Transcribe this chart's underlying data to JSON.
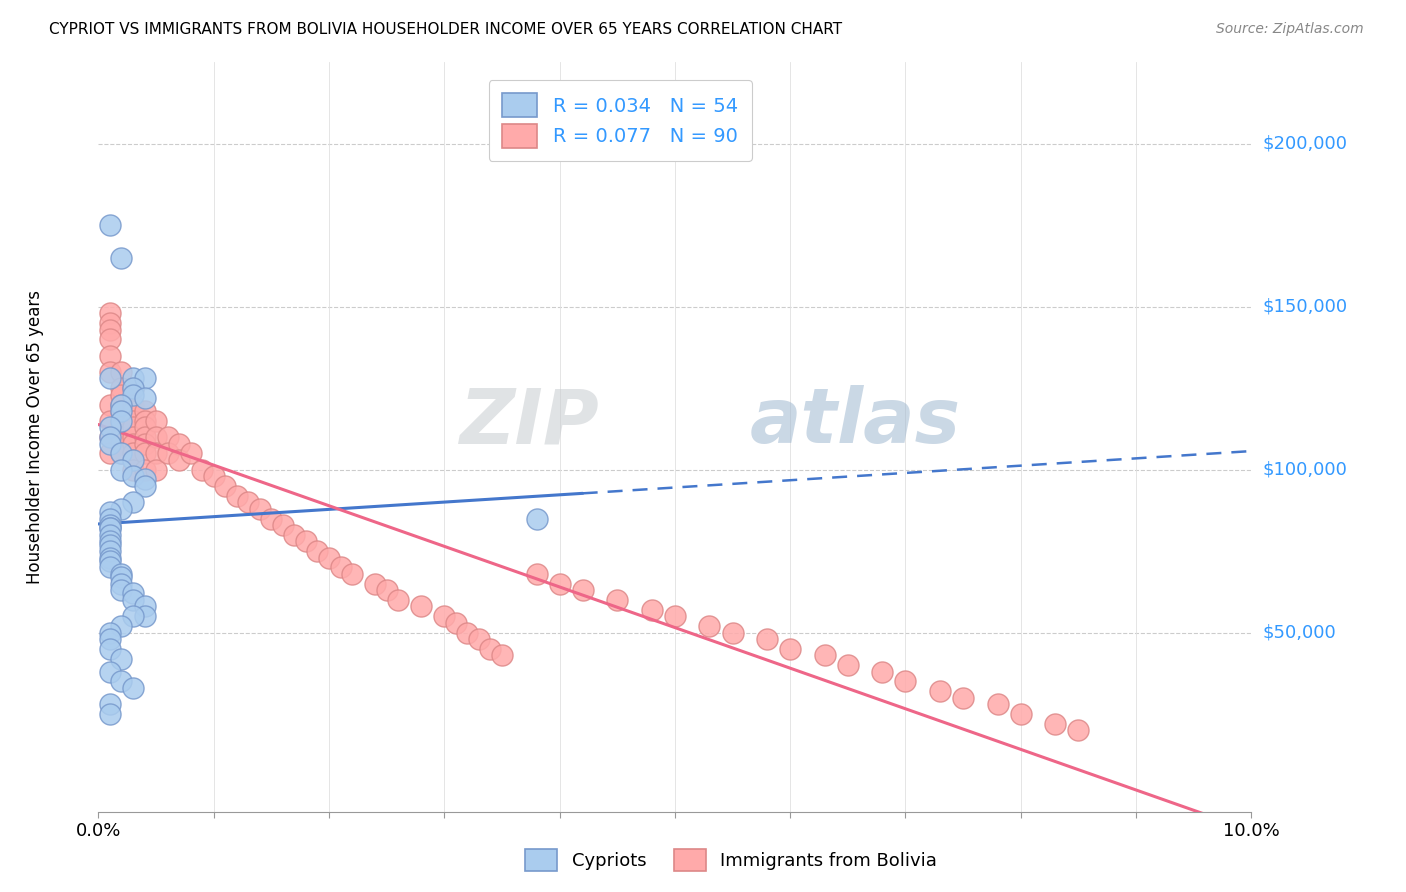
{
  "title": "CYPRIOT VS IMMIGRANTS FROM BOLIVIA HOUSEHOLDER INCOME OVER 65 YEARS CORRELATION CHART",
  "source": "Source: ZipAtlas.com",
  "ylabel": "Householder Income Over 65 years",
  "x_min": 0.0,
  "x_max": 0.1,
  "y_min": -5000,
  "y_max": 225000,
  "legend1_label": "R = 0.034   N = 54",
  "legend2_label": "R = 0.077   N = 90",
  "legend_bottom1": "Cypriots",
  "legend_bottom2": "Immigrants from Bolivia",
  "blue_face": "#aaccee",
  "blue_edge": "#7799cc",
  "pink_face": "#ffaaaa",
  "pink_edge": "#dd8888",
  "trend_blue": "#4477cc",
  "trend_pink": "#ee6688",
  "watermark_gray": "#c8ccd0",
  "watermark_blue": "#a0b8d0",
  "blue_r": 0.034,
  "blue_n": 54,
  "pink_r": 0.077,
  "pink_n": 90,
  "blue_x": [
    0.001,
    0.002,
    0.001,
    0.003,
    0.004,
    0.003,
    0.003,
    0.004,
    0.002,
    0.002,
    0.002,
    0.001,
    0.001,
    0.001,
    0.002,
    0.003,
    0.002,
    0.003,
    0.004,
    0.004,
    0.003,
    0.002,
    0.001,
    0.001,
    0.001,
    0.001,
    0.001,
    0.001,
    0.001,
    0.001,
    0.001,
    0.001,
    0.001,
    0.001,
    0.002,
    0.002,
    0.002,
    0.002,
    0.003,
    0.003,
    0.004,
    0.038,
    0.004,
    0.003,
    0.002,
    0.001,
    0.001,
    0.001,
    0.002,
    0.001,
    0.002,
    0.003,
    0.001,
    0.001
  ],
  "blue_y": [
    175000,
    165000,
    128000,
    128000,
    128000,
    125000,
    123000,
    122000,
    120000,
    118000,
    115000,
    113000,
    110000,
    108000,
    105000,
    103000,
    100000,
    98000,
    97000,
    95000,
    90000,
    88000,
    87000,
    85000,
    83000,
    82000,
    82000,
    80000,
    78000,
    77000,
    75000,
    73000,
    72000,
    70000,
    68000,
    67000,
    65000,
    63000,
    62000,
    60000,
    58000,
    85000,
    55000,
    55000,
    52000,
    50000,
    48000,
    45000,
    42000,
    38000,
    35000,
    33000,
    28000,
    25000
  ],
  "pink_x": [
    0.001,
    0.001,
    0.001,
    0.001,
    0.001,
    0.001,
    0.001,
    0.001,
    0.001,
    0.001,
    0.002,
    0.002,
    0.002,
    0.002,
    0.002,
    0.002,
    0.002,
    0.002,
    0.002,
    0.002,
    0.003,
    0.003,
    0.003,
    0.003,
    0.003,
    0.003,
    0.003,
    0.003,
    0.003,
    0.003,
    0.004,
    0.004,
    0.004,
    0.004,
    0.004,
    0.004,
    0.004,
    0.005,
    0.005,
    0.005,
    0.005,
    0.006,
    0.006,
    0.007,
    0.007,
    0.008,
    0.009,
    0.01,
    0.011,
    0.012,
    0.013,
    0.014,
    0.015,
    0.016,
    0.017,
    0.018,
    0.019,
    0.02,
    0.021,
    0.022,
    0.024,
    0.025,
    0.026,
    0.028,
    0.03,
    0.031,
    0.032,
    0.033,
    0.034,
    0.035,
    0.038,
    0.04,
    0.042,
    0.045,
    0.048,
    0.05,
    0.053,
    0.055,
    0.058,
    0.06,
    0.063,
    0.065,
    0.068,
    0.07,
    0.073,
    0.075,
    0.078,
    0.08,
    0.083,
    0.085
  ],
  "pink_y": [
    148000,
    145000,
    143000,
    140000,
    135000,
    130000,
    120000,
    115000,
    110000,
    105000,
    130000,
    125000,
    123000,
    120000,
    118000,
    115000,
    113000,
    110000,
    108000,
    105000,
    125000,
    120000,
    118000,
    115000,
    113000,
    110000,
    108000,
    105000,
    103000,
    100000,
    118000,
    115000,
    113000,
    110000,
    108000,
    105000,
    100000,
    115000,
    110000,
    105000,
    100000,
    110000,
    105000,
    108000,
    103000,
    105000,
    100000,
    98000,
    95000,
    92000,
    90000,
    88000,
    85000,
    83000,
    80000,
    78000,
    75000,
    73000,
    70000,
    68000,
    65000,
    63000,
    60000,
    58000,
    55000,
    53000,
    50000,
    48000,
    45000,
    43000,
    68000,
    65000,
    63000,
    60000,
    57000,
    55000,
    52000,
    50000,
    48000,
    45000,
    43000,
    40000,
    38000,
    35000,
    32000,
    30000,
    28000,
    25000,
    22000,
    20000
  ]
}
